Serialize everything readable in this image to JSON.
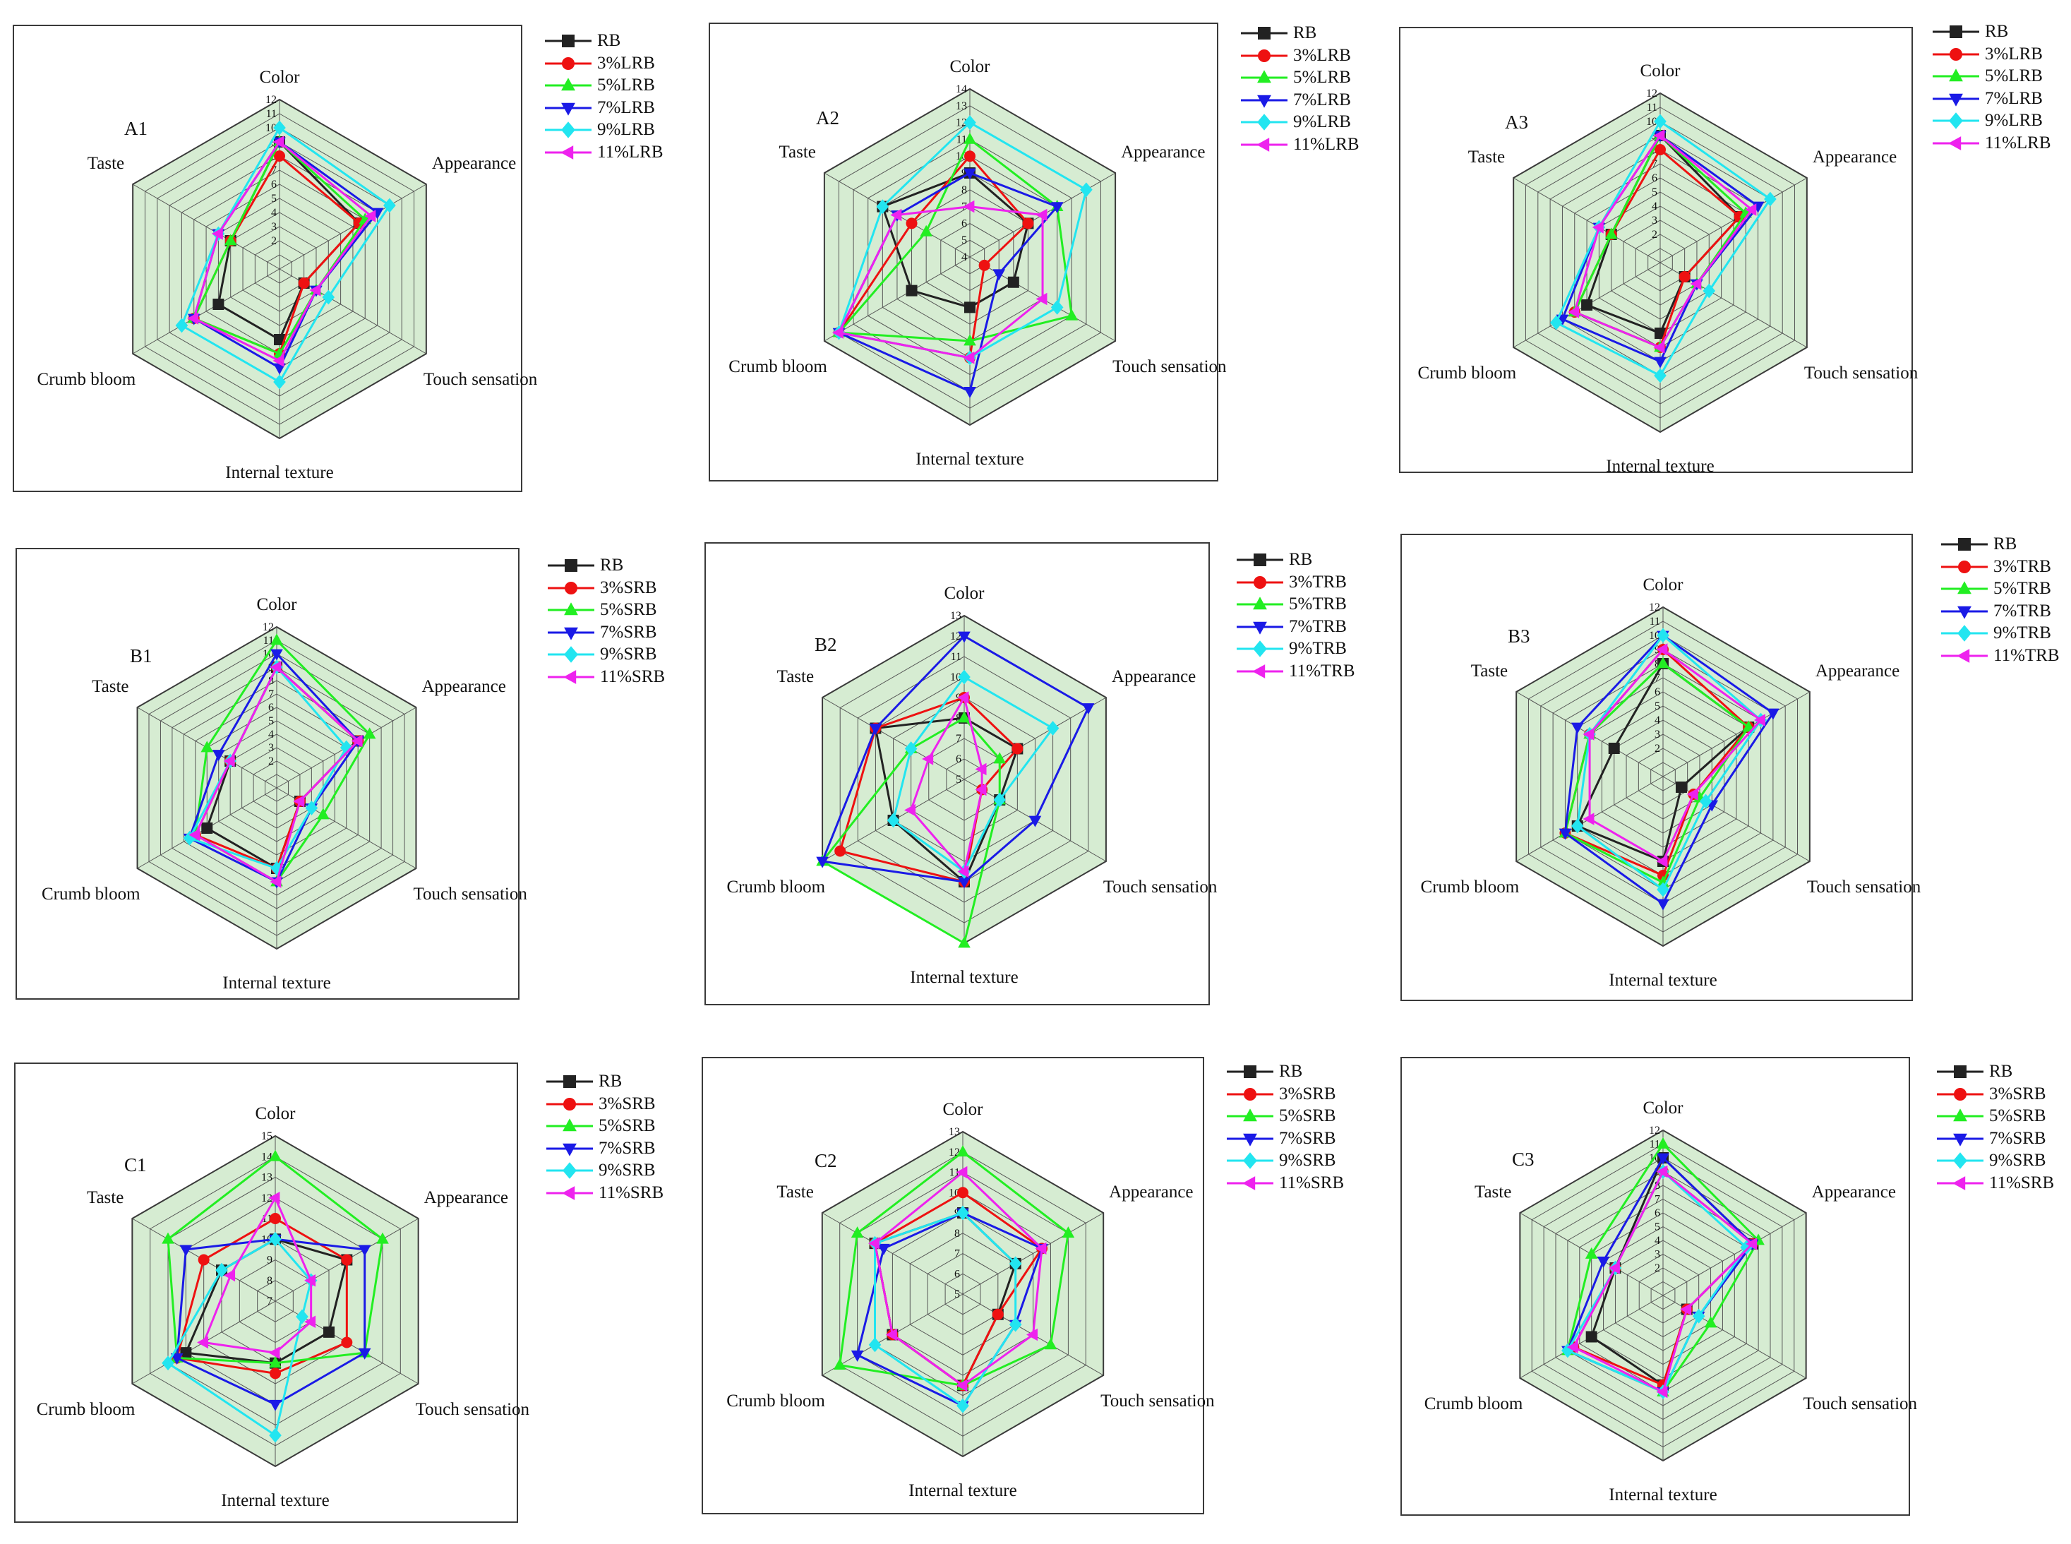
{
  "axes": [
    "Color",
    "Appearance",
    "Touch sensation",
    "Internal texture",
    "Crumb bloom",
    "Taste"
  ],
  "series_colors": [
    "#222222",
    "#ee1111",
    "#22ee22",
    "#1a1ae6",
    "#22e5f0",
    "#ee22ee"
  ],
  "series_markers": [
    "square",
    "circle",
    "triangle-up",
    "triangle-down",
    "diamond",
    "triangle-left"
  ],
  "chart_data": [
    {
      "type": "radar",
      "id": "A1",
      "series_names": [
        "RB",
        "3%LRB",
        "5%LRB",
        "7%LRB",
        "9%LRB",
        "11%LRB"
      ],
      "rmin": 0,
      "rmax": 12,
      "ticks": [
        2,
        3,
        4,
        5,
        6,
        7,
        8,
        9,
        10,
        11,
        12
      ],
      "values": [
        [
          9,
          6.5,
          2,
          5,
          5,
          4
        ],
        [
          8,
          6.5,
          2,
          6,
          7,
          4
        ],
        [
          9,
          7,
          3,
          6,
          7,
          4
        ],
        [
          9,
          8,
          3,
          7,
          7,
          5
        ],
        [
          10,
          9,
          4,
          8,
          8,
          5
        ],
        [
          9,
          7.5,
          3,
          6.5,
          7,
          5
        ]
      ]
    },
    {
      "type": "radar",
      "id": "A2",
      "series_names": [
        "RB",
        "3%LRB",
        "5%LRB",
        "7%LRB",
        "9%LRB",
        "11%LRB"
      ],
      "rmin": 4,
      "rmax": 14,
      "ticks": [
        4,
        5,
        6,
        7,
        8,
        9,
        10,
        11,
        12,
        13,
        14
      ],
      "values": [
        [
          9,
          8,
          7,
          7,
          8,
          10
        ],
        [
          10,
          8,
          5,
          10,
          13,
          8
        ],
        [
          11,
          10,
          11,
          9,
          13,
          7
        ],
        [
          9,
          10,
          6,
          12,
          13,
          9
        ],
        [
          12,
          12,
          10,
          10,
          13,
          10
        ],
        [
          7,
          9,
          9,
          10,
          13,
          9
        ]
      ]
    },
    {
      "type": "radar",
      "id": "A3",
      "series_names": [
        "RB",
        "3%LRB",
        "5%LRB",
        "7%LRB",
        "9%LRB",
        "11%LRB"
      ],
      "rmin": 0,
      "rmax": 12,
      "ticks": [
        2,
        3,
        4,
        5,
        6,
        7,
        8,
        9,
        10,
        11,
        12
      ],
      "values": [
        [
          9,
          6.5,
          2,
          5,
          6,
          4
        ],
        [
          8,
          6.5,
          2,
          6,
          7,
          4
        ],
        [
          9,
          7,
          3,
          6,
          7,
          4
        ],
        [
          9,
          8,
          3,
          7,
          8,
          5
        ],
        [
          10,
          9,
          4,
          8,
          8.5,
          5
        ],
        [
          9,
          7.5,
          3,
          6,
          7,
          5
        ]
      ]
    },
    {
      "type": "radar",
      "id": "B1",
      "series_names": [
        "RB",
        "3%SRB",
        "5%SRB",
        "7%SRB",
        "9%SRB",
        "11%SRB"
      ],
      "rmin": 0,
      "rmax": 12,
      "ticks": [
        2,
        3,
        4,
        5,
        6,
        7,
        8,
        9,
        10,
        11,
        12
      ],
      "values": [
        [
          9,
          7,
          2,
          6,
          6,
          4
        ],
        [
          9,
          7,
          2,
          6,
          7,
          4
        ],
        [
          11,
          8,
          4,
          7,
          7,
          6
        ],
        [
          10,
          7,
          3,
          7,
          7.5,
          5
        ],
        [
          9,
          6,
          3,
          6,
          7.5,
          4
        ],
        [
          9,
          7,
          2,
          7,
          7,
          4
        ]
      ]
    },
    {
      "type": "radar",
      "id": "B2",
      "series_names": [
        "RB",
        "3%TRB",
        "5%TRB",
        "7%TRB",
        "9%TRB",
        "11%TRB"
      ],
      "rmin": 5,
      "rmax": 13,
      "ticks": [
        5,
        6,
        7,
        8,
        9,
        10,
        11,
        12,
        13
      ],
      "values": [
        [
          8,
          8,
          7,
          10,
          9,
          10
        ],
        [
          9,
          8,
          6,
          10,
          12,
          10
        ],
        [
          8,
          7,
          7,
          13,
          13,
          8
        ],
        [
          12,
          12,
          9,
          10,
          13,
          10
        ],
        [
          10,
          10,
          7,
          9.5,
          9,
          8
        ],
        [
          9,
          6,
          6,
          9.5,
          8,
          7
        ]
      ]
    },
    {
      "type": "radar",
      "id": "B3",
      "series_names": [
        "RB",
        "3%TRB",
        "5%TRB",
        "7%TRB",
        "9%TRB",
        "11%TRB"
      ],
      "rmin": 0,
      "rmax": 12,
      "ticks": [
        2,
        3,
        4,
        5,
        6,
        7,
        8,
        9,
        10,
        11,
        12
      ],
      "values": [
        [
          8,
          7,
          1.5,
          6,
          7,
          4
        ],
        [
          9,
          7,
          2.5,
          7,
          8,
          6
        ],
        [
          8,
          7,
          3,
          7.5,
          8,
          6
        ],
        [
          10,
          9,
          4,
          9,
          8,
          7
        ],
        [
          10,
          8,
          3.5,
          8,
          7,
          6
        ],
        [
          9,
          8,
          2.5,
          6,
          6,
          6
        ]
      ]
    },
    {
      "type": "radar",
      "id": "C1",
      "series_names": [
        "RB",
        "3%SRB",
        "5%SRB",
        "7%SRB",
        "9%SRB",
        "11%SRB"
      ],
      "rmin": 7,
      "rmax": 15,
      "ticks": [
        7,
        8,
        9,
        10,
        11,
        12,
        13,
        14,
        15
      ],
      "values": [
        [
          10,
          11,
          10,
          10,
          12,
          10
        ],
        [
          11,
          11,
          11,
          10.5,
          12.5,
          11
        ],
        [
          14,
          13,
          12,
          10,
          12.5,
          13
        ],
        [
          10,
          12,
          12,
          12,
          12.5,
          12
        ],
        [
          10,
          9,
          8.5,
          13.5,
          13,
          10
        ],
        [
          12,
          9,
          9,
          9.5,
          11,
          9.5
        ]
      ]
    },
    {
      "type": "radar",
      "id": "C2",
      "series_names": [
        "RB",
        "3%SRB",
        "5%SRB",
        "7%SRB",
        "9%SRB",
        "11%SRB"
      ],
      "rmin": 5,
      "rmax": 13,
      "ticks": [
        5,
        6,
        7,
        8,
        9,
        10,
        11,
        12,
        13
      ],
      "values": [
        [
          9,
          8,
          7,
          9.5,
          9,
          10
        ],
        [
          10,
          9.5,
          7,
          9.5,
          9,
          10
        ],
        [
          12,
          11,
          10,
          9.5,
          12,
          11
        ],
        [
          9,
          9.5,
          8,
          10.5,
          11,
          9.5
        ],
        [
          9,
          8,
          8,
          10.5,
          10,
          10
        ],
        [
          11,
          9.5,
          9,
          9.5,
          9,
          10
        ]
      ]
    },
    {
      "type": "radar",
      "id": "C3",
      "series_names": [
        "RB",
        "3%SRB",
        "5%SRB",
        "7%SRB",
        "9%SRB",
        "11%SRB"
      ],
      "rmin": 0,
      "rmax": 12,
      "ticks": [
        2,
        3,
        4,
        5,
        6,
        7,
        8,
        9,
        10,
        11,
        12
      ],
      "values": [
        [
          10,
          7.5,
          2,
          6.5,
          6,
          4
        ],
        [
          9,
          7.5,
          2,
          6.5,
          7.5,
          4
        ],
        [
          11,
          8,
          4,
          7,
          8,
          6
        ],
        [
          10,
          7.5,
          3,
          7,
          8,
          5
        ],
        [
          9,
          7,
          3,
          7,
          8,
          4
        ],
        [
          9,
          7.5,
          2,
          7,
          7.5,
          4
        ]
      ]
    }
  ]
}
